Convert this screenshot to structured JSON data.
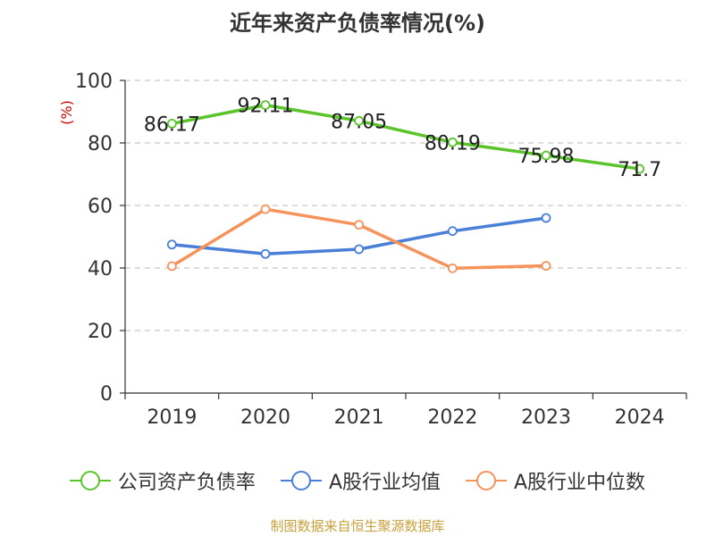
{
  "chart_data": {
    "type": "line",
    "title": "近年来资产负债率情况(%)",
    "ylabel": "(%)",
    "categories": [
      "2019",
      "2020",
      "2021",
      "2022",
      "2023",
      "2024"
    ],
    "ylim": [
      0,
      100
    ],
    "yticks": [
      0,
      20,
      40,
      60,
      80,
      100
    ],
    "grid": true,
    "legend_position": "bottom",
    "series": [
      {
        "name": "公司资产负债率",
        "color": "#5ac42a",
        "values": [
          86.17,
          92.11,
          87.05,
          80.19,
          75.98,
          71.7
        ],
        "labels": [
          "86.17",
          "92.11",
          "87.05",
          "80.19",
          "75.98",
          "71.7"
        ]
      },
      {
        "name": "A股行业均值",
        "color": "#4a7fd8",
        "values": [
          47.5,
          44.5,
          46.0,
          51.8,
          56.0,
          null
        ]
      },
      {
        "name": "A股行业中位数",
        "color": "#f5935a",
        "values": [
          40.6,
          58.8,
          53.8,
          39.9,
          40.7,
          null
        ]
      }
    ]
  },
  "source_text": "制图数据来自恒生聚源数据库"
}
